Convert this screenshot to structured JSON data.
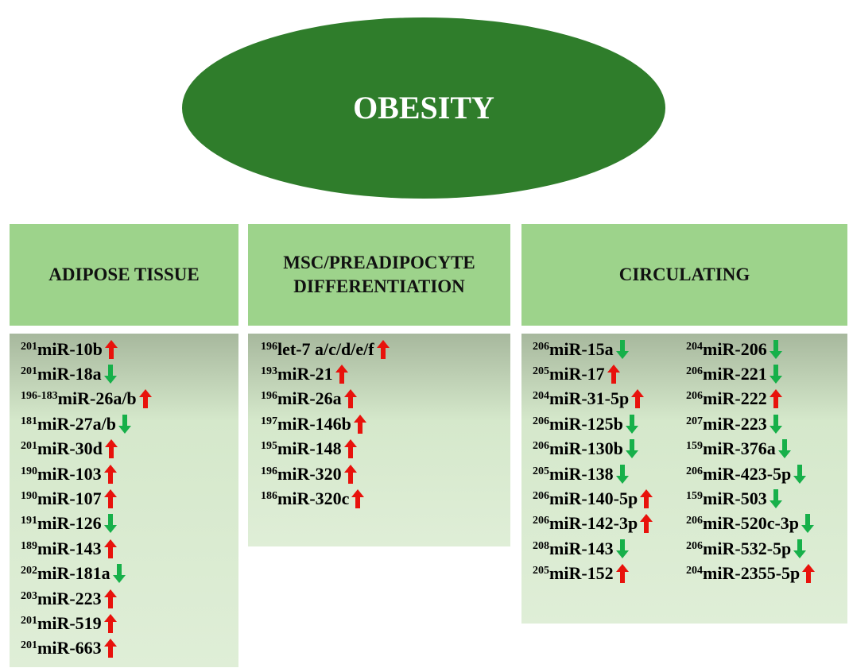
{
  "title": "OBESITY",
  "panels": [
    {
      "header": "ADIPOSE TISSUE",
      "columns": [
        [
          {
            "ref": "201",
            "name": "miR-10b",
            "trend": "up"
          },
          {
            "ref": "201",
            "name": "miR-18a",
            "trend": "down"
          },
          {
            "ref": "196-183",
            "name": "miR-26a/b",
            "trend": "up"
          },
          {
            "ref": "181",
            "name": "miR-27a/b",
            "trend": "down"
          },
          {
            "ref": "201",
            "name": "miR-30d",
            "trend": "up"
          },
          {
            "ref": "190",
            "name": "miR-103",
            "trend": "up"
          },
          {
            "ref": "190",
            "name": "miR-107",
            "trend": "up"
          },
          {
            "ref": "191",
            "name": "miR-126",
            "trend": "down"
          },
          {
            "ref": "189",
            "name": "miR-143",
            "trend": "up"
          },
          {
            "ref": "202",
            "name": "miR-181a",
            "trend": "down"
          },
          {
            "ref": "203",
            "name": "miR-223",
            "trend": "up"
          },
          {
            "ref": "201",
            "name": "miR-519",
            "trend": "up"
          },
          {
            "ref": "201",
            "name": "miR-663",
            "trend": "up"
          }
        ]
      ]
    },
    {
      "header": "MSC/PREADIPOCYTE DIFFERENTIATION",
      "columns": [
        [
          {
            "ref": "196",
            "name": "let-7 a/c/d/e/f",
            "trend": "up"
          },
          {
            "ref": "193",
            "name": "miR-21",
            "trend": "up"
          },
          {
            "ref": "196",
            "name": "miR-26a",
            "trend": "up"
          },
          {
            "ref": "197",
            "name": "miR-146b",
            "trend": "up"
          },
          {
            "ref": "195",
            "name": "miR-148",
            "trend": "up"
          },
          {
            "ref": "196",
            "name": "miR-320",
            "trend": "up"
          },
          {
            "ref": "186",
            "name": "miR-320c",
            "trend": "up"
          }
        ]
      ]
    },
    {
      "header": "CIRCULATING",
      "columns": [
        [
          {
            "ref": "206",
            "name": "miR-15a",
            "trend": "down"
          },
          {
            "ref": "205",
            "name": "miR-17",
            "trend": "up"
          },
          {
            "ref": "204",
            "name": "miR-31-5p",
            "trend": "up"
          },
          {
            "ref": "206",
            "name": "miR-125b",
            "trend": "down"
          },
          {
            "ref": "206",
            "name": "miR-130b",
            "trend": "down"
          },
          {
            "ref": "205",
            "name": "miR-138",
            "trend": "down"
          },
          {
            "ref": "206",
            "name": "miR-140-5p",
            "trend": "up"
          },
          {
            "ref": "206",
            "name": "miR-142-3p",
            "trend": "up"
          },
          {
            "ref": "208",
            "name": "miR-143",
            "trend": "down"
          },
          {
            "ref": "205",
            "name": "miR-152",
            "trend": "up"
          }
        ],
        [
          {
            "ref": "204",
            "name": "miR-206",
            "trend": "down"
          },
          {
            "ref": "206",
            "name": "miR-221",
            "trend": "down"
          },
          {
            "ref": "206",
            "name": "miR-222",
            "trend": "up"
          },
          {
            "ref": "207",
            "name": "miR-223",
            "trend": "down"
          },
          {
            "ref": "159",
            "name": "miR-376a",
            "trend": "down"
          },
          {
            "ref": "206",
            "name": "miR-423-5p",
            "trend": "down"
          },
          {
            "ref": "159",
            "name": "miR-503",
            "trend": "down"
          },
          {
            "ref": "206",
            "name": "miR-520c-3p",
            "trend": "down"
          },
          {
            "ref": "206",
            "name": "miR-532-5p",
            "trend": "down"
          },
          {
            "ref": "204",
            "name": "miR-2355-5p",
            "trend": "up"
          }
        ]
      ]
    }
  ]
}
